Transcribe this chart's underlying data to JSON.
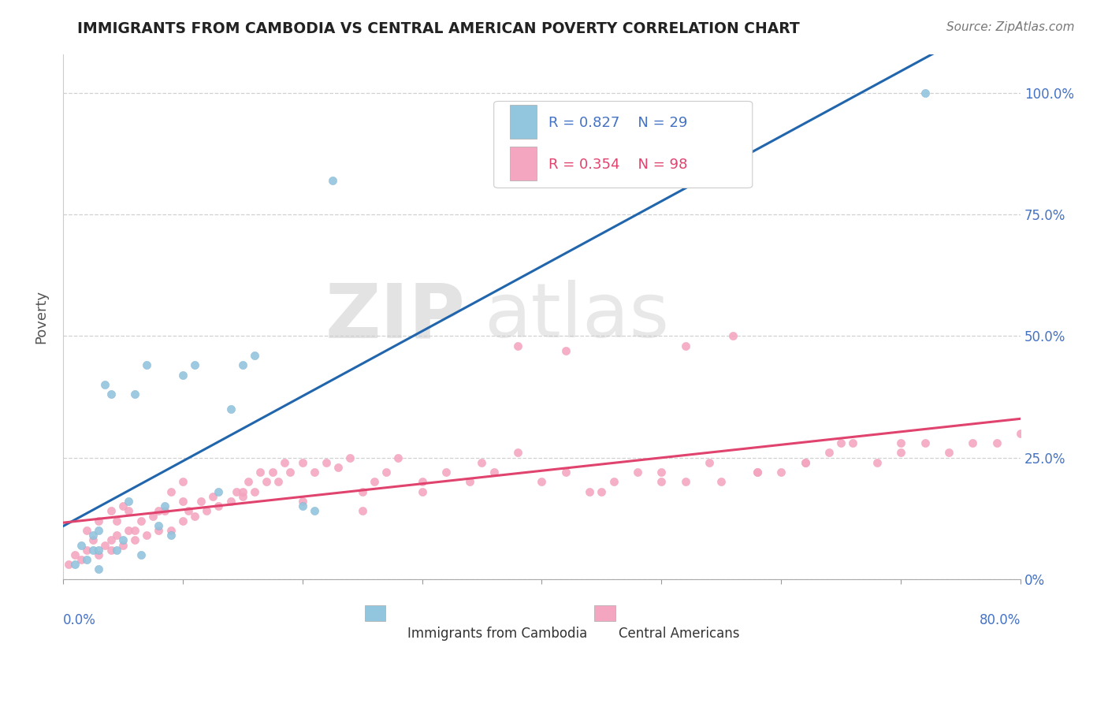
{
  "title": "IMMIGRANTS FROM CAMBODIA VS CENTRAL AMERICAN POVERTY CORRELATION CHART",
  "source": "Source: ZipAtlas.com",
  "ylabel": "Poverty",
  "color_blue": "#92c5de",
  "color_pink": "#f4a6c0",
  "line_color_blue": "#2166ac",
  "line_color_pink": "#e0436e",
  "background_color": "#ffffff",
  "grid_color": "#cccccc",
  "R_blue": 0.827,
  "N_blue": 29,
  "R_pink": 0.354,
  "N_pink": 98,
  "xmin": 0.0,
  "xmax": 0.8,
  "ymin": 0.0,
  "ymax": 1.08,
  "yticks": [
    0.0,
    0.25,
    0.5,
    0.75,
    1.0
  ],
  "ytick_labels": [
    "0%",
    "25.0%",
    "50.0%",
    "75.0%",
    "100.0%"
  ],
  "blue_x": [
    0.01,
    0.015,
    0.02,
    0.025,
    0.025,
    0.03,
    0.03,
    0.03,
    0.035,
    0.04,
    0.045,
    0.05,
    0.055,
    0.06,
    0.065,
    0.07,
    0.08,
    0.085,
    0.09,
    0.1,
    0.11,
    0.13,
    0.14,
    0.15,
    0.16,
    0.2,
    0.21,
    0.225,
    0.72
  ],
  "blue_y": [
    0.03,
    0.07,
    0.04,
    0.06,
    0.09,
    0.06,
    0.1,
    0.02,
    0.4,
    0.38,
    0.06,
    0.08,
    0.16,
    0.38,
    0.05,
    0.44,
    0.11,
    0.15,
    0.09,
    0.42,
    0.44,
    0.18,
    0.35,
    0.44,
    0.46,
    0.15,
    0.14,
    0.82,
    1.0
  ],
  "pink_x": [
    0.005,
    0.01,
    0.015,
    0.02,
    0.02,
    0.025,
    0.03,
    0.03,
    0.035,
    0.04,
    0.04,
    0.045,
    0.05,
    0.05,
    0.055,
    0.06,
    0.065,
    0.07,
    0.075,
    0.08,
    0.085,
    0.09,
    0.09,
    0.1,
    0.1,
    0.105,
    0.11,
    0.115,
    0.12,
    0.125,
    0.13,
    0.14,
    0.145,
    0.15,
    0.155,
    0.16,
    0.165,
    0.17,
    0.175,
    0.18,
    0.185,
    0.19,
    0.2,
    0.21,
    0.22,
    0.23,
    0.24,
    0.25,
    0.26,
    0.27,
    0.28,
    0.3,
    0.32,
    0.34,
    0.36,
    0.38,
    0.4,
    0.42,
    0.44,
    0.46,
    0.48,
    0.5,
    0.52,
    0.54,
    0.56,
    0.58,
    0.6,
    0.62,
    0.64,
    0.66,
    0.68,
    0.7,
    0.72,
    0.74,
    0.76,
    0.78,
    0.8,
    0.52,
    0.38,
    0.42,
    0.65,
    0.7,
    0.62,
    0.58,
    0.55,
    0.5,
    0.45,
    0.35,
    0.3,
    0.25,
    0.2,
    0.15,
    0.1,
    0.08,
    0.06,
    0.04,
    0.045,
    0.055
  ],
  "pink_y": [
    0.03,
    0.05,
    0.04,
    0.06,
    0.1,
    0.08,
    0.05,
    0.12,
    0.07,
    0.06,
    0.14,
    0.09,
    0.07,
    0.15,
    0.1,
    0.08,
    0.12,
    0.09,
    0.13,
    0.1,
    0.14,
    0.1,
    0.18,
    0.12,
    0.2,
    0.14,
    0.13,
    0.16,
    0.14,
    0.17,
    0.15,
    0.16,
    0.18,
    0.17,
    0.2,
    0.18,
    0.22,
    0.2,
    0.22,
    0.2,
    0.24,
    0.22,
    0.24,
    0.22,
    0.24,
    0.23,
    0.25,
    0.14,
    0.2,
    0.22,
    0.25,
    0.18,
    0.22,
    0.2,
    0.22,
    0.26,
    0.2,
    0.22,
    0.18,
    0.2,
    0.22,
    0.22,
    0.2,
    0.24,
    0.5,
    0.22,
    0.22,
    0.24,
    0.26,
    0.28,
    0.24,
    0.26,
    0.28,
    0.26,
    0.28,
    0.28,
    0.3,
    0.48,
    0.48,
    0.47,
    0.28,
    0.28,
    0.24,
    0.22,
    0.2,
    0.2,
    0.18,
    0.24,
    0.2,
    0.18,
    0.16,
    0.18,
    0.16,
    0.14,
    0.1,
    0.08,
    0.12,
    0.14
  ]
}
